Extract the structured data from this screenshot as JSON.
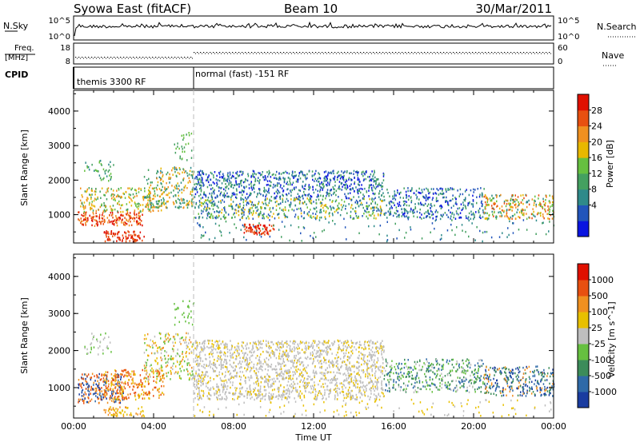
{
  "header": {
    "station": "Syowa East (fitACF)",
    "beam": "Beam 10",
    "date": "30/Mar/2011"
  },
  "strip": {
    "nsky_label": "N.Sky",
    "nsky_ticks": [
      "10^5",
      "10^0"
    ],
    "nsearch_label": "N.Search",
    "nsearch_ticks": [
      "10^5",
      "10^0"
    ],
    "freq_label_top": "Freq.",
    "freq_label_bottom": "[MHz]",
    "freq_ticks": [
      "18",
      "8"
    ],
    "nave_label": "Nave",
    "nave_ticks": [
      "60",
      "0"
    ],
    "cpid_label": "CPID",
    "modes": [
      {
        "label": "themis 3300 RF",
        "start": "00:00",
        "end": "06:00"
      },
      {
        "label": "normal (fast) -151 RF",
        "start": "06:00",
        "end": "24:00"
      }
    ]
  },
  "axes": {
    "x_ticks": [
      "00:00",
      "04:00",
      "08:00",
      "12:00",
      "16:00",
      "20:00",
      "00:00"
    ],
    "x_label": "Time UT",
    "y_label": "Slant Range [km]",
    "y_ticks": [
      "1000",
      "2000",
      "3000",
      "4000"
    ]
  },
  "chart_data": [
    {
      "type": "heatmap",
      "name": "power",
      "x_unit": "hours UT",
      "xlim": [
        0,
        24
      ],
      "ylabel": "Slant Range [km]",
      "ylim": [
        180,
        4600
      ],
      "colorbar": {
        "label": "Power [dB]",
        "ticks": [
          "28",
          "24",
          "20",
          "16",
          "12",
          "8",
          "4"
        ],
        "values": [
          28,
          24,
          20,
          16,
          12,
          8,
          4
        ],
        "colors": [
          "#0a14e0",
          "#2255bb",
          "#2f8a8a",
          "#44a060",
          "#66c040",
          "#e8b800",
          "#f09020",
          "#e85010",
          "#e01000"
        ]
      }
    },
    {
      "type": "heatmap",
      "name": "velocity",
      "x_unit": "hours UT",
      "xlim": [
        0,
        24
      ],
      "ylabel": "Slant Range [km]",
      "ylim": [
        180,
        4600
      ],
      "colorbar": {
        "label": "Velocity [m s^-1]",
        "ticks": [
          "1000",
          "500",
          "100",
          "25",
          "-25",
          "-100",
          "-500",
          "-1000"
        ],
        "values": [
          1000,
          500,
          100,
          25,
          -25,
          -100,
          -500,
          -1000
        ],
        "colors": [
          "#1a3ca0",
          "#2f6aa8",
          "#3c8c5a",
          "#66c040",
          "#bebebe",
          "#e8c000",
          "#f09020",
          "#e85010",
          "#e01000"
        ]
      }
    }
  ]
}
